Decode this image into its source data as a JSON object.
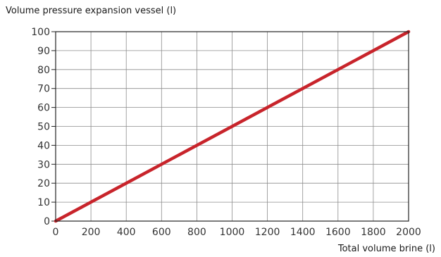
{
  "chart_data": {
    "type": "line",
    "ylabel": "Volume pressure expansion vessel (l)",
    "xlabel": "Total volume brine (l)",
    "xlim": [
      0,
      2000
    ],
    "ylim": [
      0,
      100
    ],
    "xticks": [
      0,
      200,
      400,
      600,
      800,
      1000,
      1200,
      1400,
      1600,
      1800,
      2000
    ],
    "yticks": [
      0,
      10,
      20,
      30,
      40,
      50,
      60,
      70,
      80,
      90,
      100
    ],
    "grid": true,
    "series": [
      {
        "x": [
          0,
          2000
        ],
        "y": [
          0,
          100
        ],
        "color": "#c8242b"
      }
    ]
  }
}
